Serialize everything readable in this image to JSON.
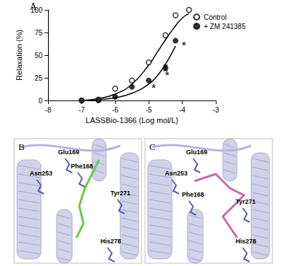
{
  "chart_data": {
    "type": "scatter",
    "annotations": [
      {
        "text": "A"
      },
      {
        "text": "*",
        "x": -4.85,
        "y": 14
      },
      {
        "text": "*",
        "x": -4.45,
        "y": 28
      },
      {
        "text": "*",
        "x": -3.95,
        "y": 61
      }
    ],
    "xlabel": "LASSBio-1366 (Log mol/L)",
    "ylabel": "Relaxation (%)",
    "xlim": [
      -8,
      -3
    ],
    "xticks": [
      -8,
      -7,
      -6,
      -5,
      -4,
      -3
    ],
    "ylim": [
      0,
      100
    ],
    "yticks": [
      0,
      25,
      50,
      75,
      100
    ],
    "grid": false,
    "legend": "top-left",
    "series": [
      {
        "name": "Control",
        "type": "scatter",
        "marker": "open_circle",
        "color": "#000000",
        "x": [
          -7,
          -6.5,
          -6,
          -5.5,
          -5,
          -4.5,
          -4.2,
          -3.8
        ],
        "values": [
          0,
          1,
          13,
          22,
          42,
          72,
          94,
          100
        ]
      },
      {
        "name": "+ ZM 241385",
        "type": "scatter",
        "marker": "circle",
        "color": "#000000",
        "x": [
          -7,
          -6.5,
          -6,
          -5.5,
          -5,
          -4.5,
          -4.2
        ],
        "values": [
          0,
          0,
          4,
          15,
          22,
          36,
          66
        ],
        "errors": [
          null,
          null,
          null,
          null,
          null,
          3,
          null
        ]
      },
      {
        "type": "line",
        "color": "#000000",
        "x": [
          -7,
          -6.5,
          -6,
          -5.5,
          -5,
          -4.75,
          -4.5,
          -4.25,
          -4,
          -3.8
        ],
        "values": [
          0,
          2,
          7,
          18,
          39,
          53,
          67,
          80,
          91,
          96
        ]
      },
      {
        "type": "line",
        "color": "#000000",
        "x": [
          -7,
          -6.5,
          -6,
          -5.5,
          -5,
          -4.75,
          -4.5,
          -4.2
        ],
        "values": [
          0,
          1,
          3,
          8,
          18,
          27,
          40,
          60
        ]
      }
    ]
  },
  "panels": [
    {
      "label": "B",
      "residues": [
        "Glu169",
        "Phe168",
        "Asn253",
        "Tyr271",
        "His278"
      ]
    },
    {
      "label": "C",
      "residues": [
        "Glu169",
        "Asn253",
        "Phe168",
        "Tyr271",
        "His278"
      ]
    }
  ]
}
